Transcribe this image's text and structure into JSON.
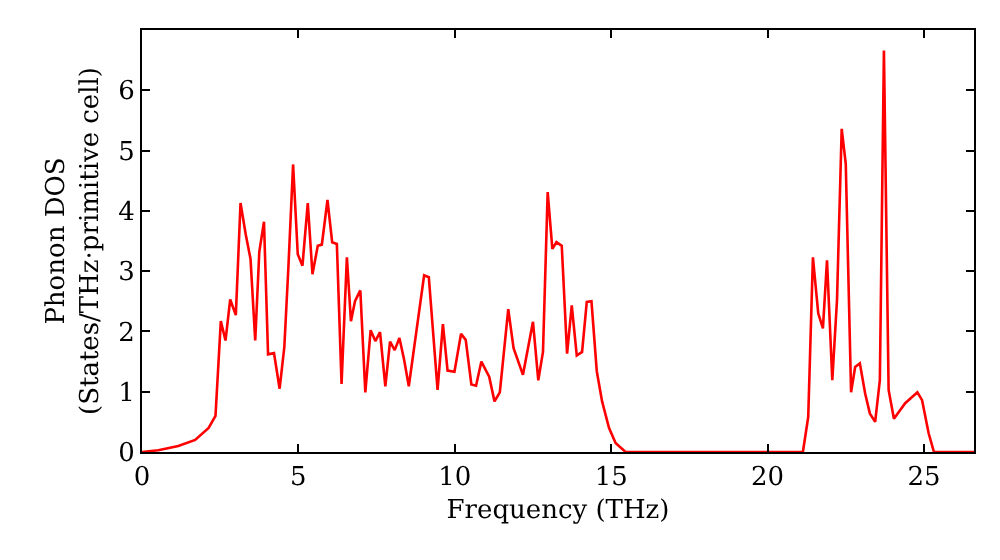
{
  "chart_data": {
    "type": "line",
    "xlabel": "Frequency (THz)",
    "ylabel": "Phonon DOS\n(States/THz·primitive cell)",
    "xlim": [
      0,
      26.6
    ],
    "ylim": [
      0,
      7
    ],
    "xticks": [
      0,
      5,
      10,
      15,
      20,
      25
    ],
    "yticks": [
      0,
      1,
      2,
      3,
      4,
      5,
      6
    ],
    "marker": "none",
    "line_style": "solid",
    "series": [
      {
        "color": "#ff0000",
        "x": [
          0,
          0.52,
          1.16,
          1.7,
          2.13,
          2.35,
          2.52,
          2.67,
          2.82,
          3.0,
          3.15,
          3.32,
          3.47,
          3.62,
          3.75,
          3.9,
          4.03,
          4.22,
          4.4,
          4.55,
          4.68,
          4.83,
          4.98,
          5.13,
          5.3,
          5.45,
          5.62,
          5.75,
          5.93,
          6.08,
          6.23,
          6.38,
          6.55,
          6.68,
          6.81,
          6.98,
          7.14,
          7.31,
          7.46,
          7.61,
          7.78,
          7.93,
          8.08,
          8.23,
          8.38,
          8.53,
          9.02,
          9.17,
          9.45,
          9.62,
          9.77,
          9.99,
          10.2,
          10.35,
          10.53,
          10.68,
          10.85,
          11.1,
          11.27,
          11.44,
          11.71,
          11.88,
          12.18,
          12.5,
          12.67,
          12.82,
          12.97,
          13.12,
          13.25,
          13.42,
          13.59,
          13.74,
          13.9,
          14.07,
          14.22,
          14.37,
          14.54,
          14.71,
          14.93,
          15.14,
          15.46,
          21.13,
          21.3,
          21.45,
          21.62,
          21.77,
          21.9,
          22.07,
          22.22,
          22.37,
          22.5,
          22.67,
          22.8,
          22.95,
          23.12,
          23.27,
          23.44,
          23.59,
          23.72,
          23.87,
          24.04,
          24.4,
          24.79,
          24.94,
          25.15,
          25.32,
          26.6
        ],
        "values": [
          0,
          0.03,
          0.1,
          0.2,
          0.4,
          0.6,
          2.17,
          1.85,
          2.53,
          2.27,
          4.13,
          3.6,
          3.2,
          1.85,
          3.32,
          3.82,
          1.62,
          1.64,
          1.05,
          1.74,
          3.06,
          4.77,
          3.28,
          3.09,
          4.13,
          2.95,
          3.42,
          3.44,
          4.18,
          3.48,
          3.45,
          1.13,
          3.23,
          2.17,
          2.5,
          2.68,
          0.99,
          2.02,
          1.84,
          1.99,
          1.09,
          1.83,
          1.69,
          1.89,
          1.53,
          1.09,
          2.93,
          2.9,
          1.03,
          2.12,
          1.35,
          1.33,
          1.96,
          1.86,
          1.12,
          1.1,
          1.5,
          1.25,
          0.84,
          0.99,
          2.37,
          1.72,
          1.28,
          2.16,
          1.19,
          1.66,
          4.31,
          3.37,
          3.48,
          3.42,
          1.63,
          2.43,
          1.6,
          1.66,
          2.49,
          2.5,
          1.34,
          0.84,
          0.4,
          0.15,
          0,
          0,
          0.58,
          3.23,
          2.3,
          2.05,
          3.18,
          1.19,
          2.52,
          5.36,
          4.78,
          0.99,
          1.41,
          1.47,
          0.97,
          0.64,
          0.5,
          1.19,
          6.66,
          1.03,
          0.55,
          0.81,
          0.99,
          0.86,
          0.31,
          0,
          0
        ]
      }
    ]
  }
}
